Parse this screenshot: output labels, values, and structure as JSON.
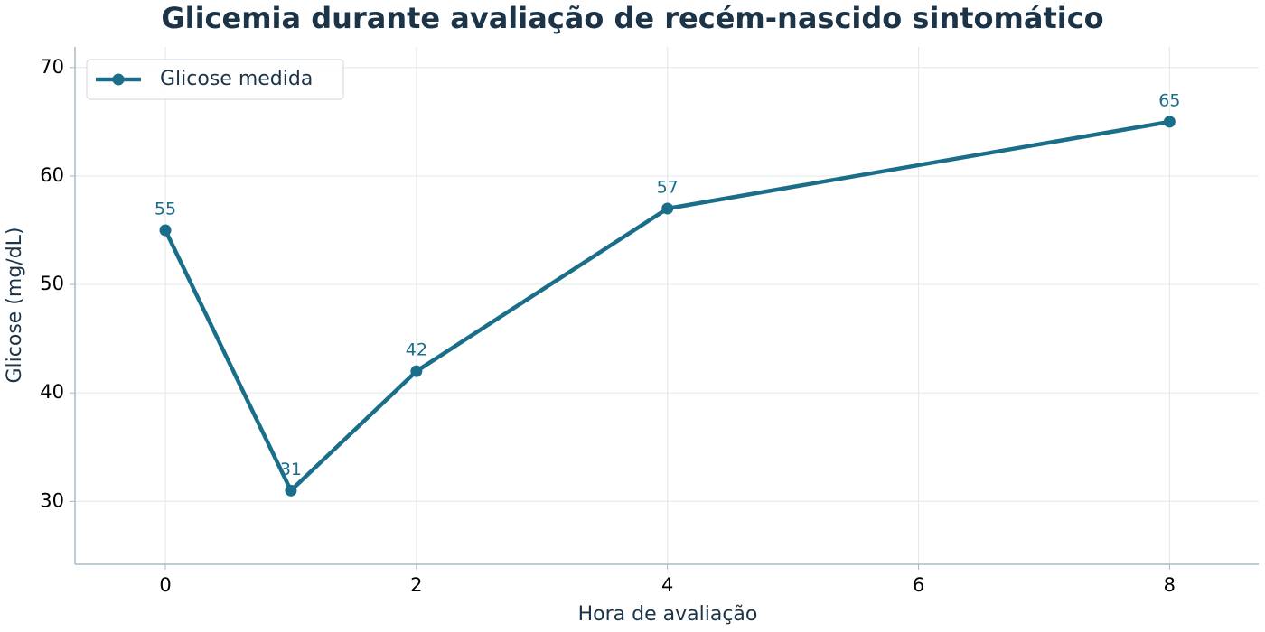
{
  "chart_data": {
    "type": "line",
    "title": "Glicemia durante avaliação de recém-nascido sintomático",
    "x_label": "Hora de avaliação",
    "y_label": "Glicose (mg/dL)",
    "x": [
      0,
      1,
      2,
      4,
      8
    ],
    "series": [
      {
        "name": "Glicose medida",
        "color": "#1a6e8a",
        "values": [
          55,
          31,
          42,
          57,
          65
        ]
      }
    ],
    "xlim": [
      -0.72,
      8.71
    ],
    "xticks": [
      0,
      2,
      4,
      6,
      8
    ],
    "ylim": [
      24.2,
      71.9
    ],
    "yticks": [
      30,
      40,
      50,
      60,
      70
    ],
    "grid": true,
    "legend": "upper left",
    "data_labels": true
  }
}
